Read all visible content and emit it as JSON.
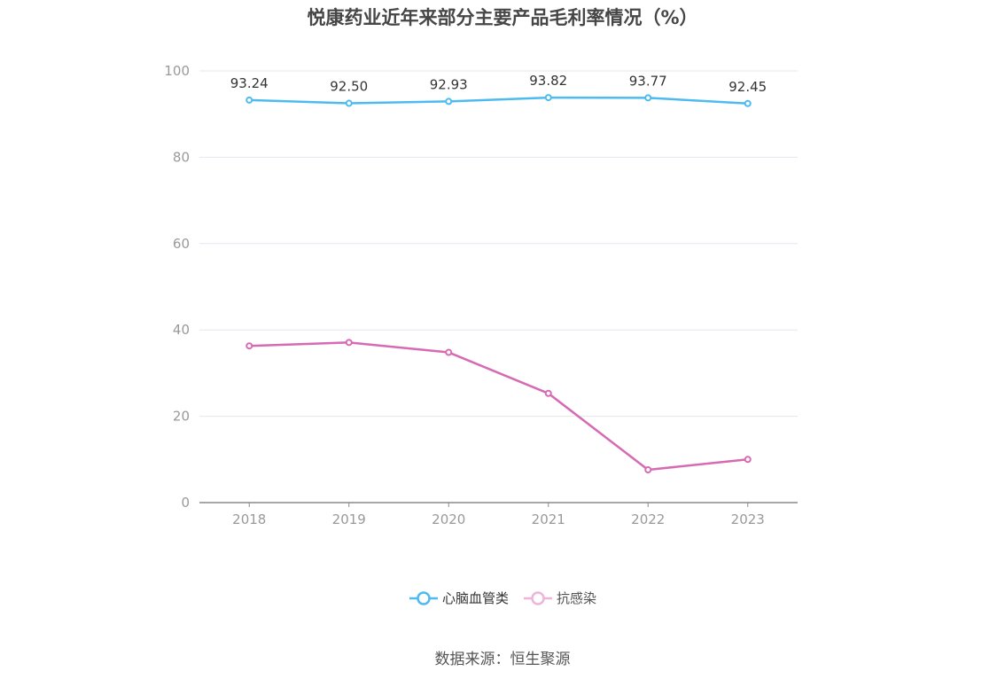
{
  "title": "悦康药业近年来部分主要产品毛利率情况（%）",
  "source": "数据来源：恒生聚源",
  "chart_data": {
    "type": "line",
    "title": "悦康药业近年来部分主要产品毛利率情况（%）",
    "categories": [
      "2018",
      "2019",
      "2020",
      "2021",
      "2022",
      "2023"
    ],
    "series": [
      {
        "name": "心脑血管类",
        "values": [
          93.24,
          92.5,
          92.93,
          93.82,
          93.77,
          92.45
        ],
        "color": "#4dbbef",
        "labels_shown": true
      },
      {
        "name": "抗感染",
        "values": [
          36.3,
          37.1,
          34.8,
          25.3,
          7.6,
          10.0
        ],
        "color": "#d66bb4",
        "labels_shown": false
      }
    ],
    "ylim": [
      0,
      100
    ],
    "yticks": [
      0,
      20,
      40,
      60,
      80,
      100
    ],
    "grid": true,
    "legend_position": "bottom"
  }
}
